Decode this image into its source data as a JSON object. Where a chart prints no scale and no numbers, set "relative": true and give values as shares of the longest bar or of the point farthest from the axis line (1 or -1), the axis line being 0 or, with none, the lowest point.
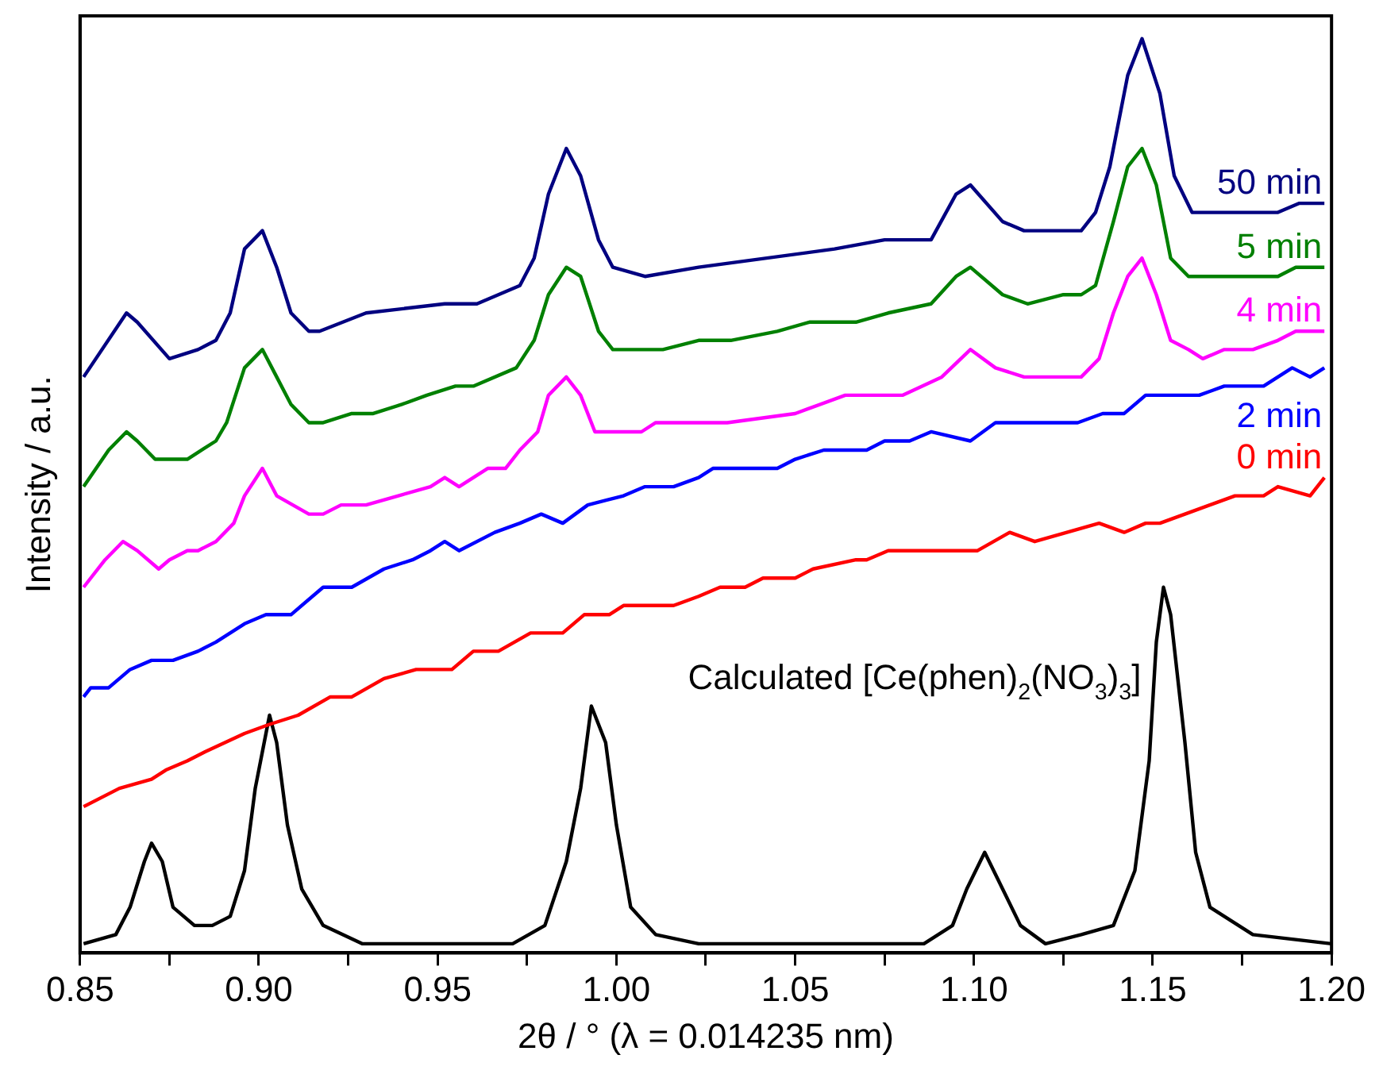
{
  "chart_data": {
    "type": "line",
    "xlabel": "2θ / ° (λ = 0.014235 nm)",
    "ylabel": "Intensity / a.u.",
    "relative": true,
    "marker": "none",
    "line_style": "solid",
    "xlim": [
      0.85,
      1.2
    ],
    "xticks": [
      0.85,
      {
        "value": 0.875,
        "label": null
      },
      {
        "value": 0.9,
        "label": "0.90"
      },
      {
        "value": 0.925,
        "label": null
      },
      0.95,
      {
        "value": 0.975,
        "label": null
      },
      {
        "value": 1.0,
        "label": "1.00"
      },
      {
        "value": 1.025,
        "label": null
      },
      1.05,
      {
        "value": 1.075,
        "label": null
      },
      {
        "value": 1.1,
        "label": "1.10"
      },
      {
        "value": 1.125,
        "label": null
      },
      1.15,
      {
        "value": 1.175,
        "label": null
      },
      {
        "value": 1.2,
        "label": "1.20"
      }
    ],
    "series": [
      {
        "name": "50 min",
        "color": "#000080",
        "x": [
          0.851,
          0.863,
          0.866,
          0.875,
          0.883,
          0.888,
          0.892,
          0.896,
          0.901,
          0.905,
          0.909,
          0.914,
          0.917,
          0.93,
          0.952,
          0.961,
          0.973,
          0.977,
          0.981,
          0.986,
          0.99,
          0.995,
          0.999,
          1.008,
          1.023,
          1.061,
          1.075,
          1.088,
          1.095,
          1.099,
          1.108,
          1.114,
          1.13,
          1.134,
          1.138,
          1.143,
          1.147,
          1.152,
          1.156,
          1.161,
          1.164,
          1.185,
          1.191,
          1.198
        ],
        "values": [
          0.63,
          0.7,
          0.69,
          0.65,
          0.66,
          0.67,
          0.7,
          0.77,
          0.79,
          0.75,
          0.7,
          0.68,
          0.68,
          0.7,
          0.71,
          0.71,
          0.73,
          0.76,
          0.83,
          0.88,
          0.85,
          0.78,
          0.75,
          0.74,
          0.75,
          0.77,
          0.78,
          0.78,
          0.83,
          0.84,
          0.8,
          0.79,
          0.79,
          0.81,
          0.86,
          0.96,
          1.0,
          0.94,
          0.85,
          0.81,
          0.81,
          0.81,
          0.82,
          0.82
        ]
      },
      {
        "name": "5 min",
        "color": "#008000",
        "x": [
          0.851,
          0.858,
          0.863,
          0.866,
          0.871,
          0.875,
          0.88,
          0.888,
          0.891,
          0.896,
          0.901,
          0.905,
          0.909,
          0.914,
          0.918,
          0.926,
          0.932,
          0.94,
          0.947,
          0.955,
          0.96,
          0.972,
          0.977,
          0.981,
          0.986,
          0.99,
          0.995,
          0.999,
          1.003,
          1.013,
          1.023,
          1.032,
          1.045,
          1.054,
          1.061,
          1.067,
          1.076,
          1.088,
          1.095,
          1.099,
          1.108,
          1.115,
          1.125,
          1.13,
          1.134,
          1.139,
          1.143,
          1.147,
          1.151,
          1.155,
          1.16,
          1.164,
          1.173,
          1.185,
          1.19,
          1.198
        ],
        "values": [
          0.51,
          0.55,
          0.57,
          0.56,
          0.54,
          0.54,
          0.54,
          0.56,
          0.58,
          0.64,
          0.66,
          0.63,
          0.6,
          0.58,
          0.58,
          0.59,
          0.59,
          0.6,
          0.61,
          0.62,
          0.62,
          0.64,
          0.67,
          0.72,
          0.75,
          0.74,
          0.68,
          0.66,
          0.66,
          0.66,
          0.67,
          0.67,
          0.68,
          0.69,
          0.69,
          0.69,
          0.7,
          0.71,
          0.74,
          0.75,
          0.72,
          0.71,
          0.72,
          0.72,
          0.73,
          0.8,
          0.86,
          0.88,
          0.84,
          0.76,
          0.74,
          0.74,
          0.74,
          0.74,
          0.75,
          0.75
        ]
      },
      {
        "name": "4 min",
        "color": "#ff00ff",
        "x": [
          0.851,
          0.857,
          0.862,
          0.866,
          0.872,
          0.875,
          0.88,
          0.883,
          0.888,
          0.893,
          0.896,
          0.901,
          0.905,
          0.914,
          0.918,
          0.923,
          0.93,
          0.939,
          0.948,
          0.952,
          0.956,
          0.96,
          0.964,
          0.969,
          0.973,
          0.978,
          0.981,
          0.986,
          0.99,
          0.994,
          0.999,
          1.002,
          1.007,
          1.011,
          1.023,
          1.031,
          1.05,
          1.064,
          1.073,
          1.08,
          1.091,
          1.099,
          1.106,
          1.114,
          1.12,
          1.13,
          1.135,
          1.139,
          1.143,
          1.147,
          1.151,
          1.155,
          1.16,
          1.164,
          1.17,
          1.178,
          1.185,
          1.19,
          1.198
        ],
        "values": [
          0.4,
          0.43,
          0.45,
          0.44,
          0.42,
          0.43,
          0.44,
          0.44,
          0.45,
          0.47,
          0.5,
          0.53,
          0.5,
          0.48,
          0.48,
          0.49,
          0.49,
          0.5,
          0.51,
          0.52,
          0.51,
          0.52,
          0.53,
          0.53,
          0.55,
          0.57,
          0.61,
          0.63,
          0.61,
          0.57,
          0.57,
          0.57,
          0.57,
          0.58,
          0.58,
          0.58,
          0.59,
          0.61,
          0.61,
          0.61,
          0.63,
          0.66,
          0.64,
          0.63,
          0.63,
          0.63,
          0.65,
          0.7,
          0.74,
          0.76,
          0.72,
          0.67,
          0.66,
          0.65,
          0.66,
          0.66,
          0.67,
          0.68,
          0.68
        ]
      },
      {
        "name": "2 min",
        "color": "#0000ff",
        "x": [
          0.851,
          0.853,
          0.858,
          0.864,
          0.87,
          0.876,
          0.883,
          0.888,
          0.896,
          0.902,
          0.909,
          0.918,
          0.926,
          0.935,
          0.943,
          0.948,
          0.952,
          0.956,
          0.966,
          0.973,
          0.979,
          0.985,
          0.992,
          1.002,
          1.008,
          1.016,
          1.023,
          1.027,
          1.045,
          1.05,
          1.058,
          1.07,
          1.075,
          1.082,
          1.088,
          1.099,
          1.106,
          1.114,
          1.129,
          1.136,
          1.142,
          1.148,
          1.163,
          1.17,
          1.181,
          1.185,
          1.189,
          1.194,
          1.198
        ],
        "values": [
          0.28,
          0.29,
          0.29,
          0.31,
          0.32,
          0.32,
          0.33,
          0.34,
          0.36,
          0.37,
          0.37,
          0.4,
          0.4,
          0.42,
          0.43,
          0.44,
          0.45,
          0.44,
          0.46,
          0.47,
          0.48,
          0.47,
          0.49,
          0.5,
          0.51,
          0.51,
          0.52,
          0.53,
          0.53,
          0.54,
          0.55,
          0.55,
          0.56,
          0.56,
          0.57,
          0.56,
          0.58,
          0.58,
          0.58,
          0.59,
          0.59,
          0.61,
          0.61,
          0.62,
          0.62,
          0.63,
          0.64,
          0.63,
          0.64
        ]
      },
      {
        "name": "0 min",
        "color": "#ff0000",
        "x": [
          0.851,
          0.861,
          0.87,
          0.874,
          0.88,
          0.885,
          0.896,
          0.903,
          0.911,
          0.92,
          0.926,
          0.935,
          0.944,
          0.954,
          0.96,
          0.967,
          0.976,
          0.985,
          0.991,
          0.998,
          1.002,
          1.016,
          1.023,
          1.029,
          1.036,
          1.041,
          1.05,
          1.055,
          1.067,
          1.07,
          1.076,
          1.088,
          1.094,
          1.099,
          1.101,
          1.11,
          1.117,
          1.135,
          1.142,
          1.148,
          1.152,
          1.159,
          1.173,
          1.181,
          1.185,
          1.194,
          1.198
        ],
        "values": [
          0.16,
          0.18,
          0.19,
          0.2,
          0.21,
          0.22,
          0.24,
          0.25,
          0.26,
          0.28,
          0.28,
          0.3,
          0.31,
          0.31,
          0.33,
          0.33,
          0.35,
          0.35,
          0.37,
          0.37,
          0.38,
          0.38,
          0.39,
          0.4,
          0.4,
          0.41,
          0.41,
          0.42,
          0.43,
          0.43,
          0.44,
          0.44,
          0.44,
          0.44,
          0.44,
          0.46,
          0.45,
          0.47,
          0.46,
          0.47,
          0.47,
          0.48,
          0.5,
          0.5,
          0.51,
          0.5,
          0.52
        ]
      },
      {
        "name": "Calculated [Ce(phen)$_{2}$(NO$_{3}$)$_{3}$]",
        "color": "#000000",
        "x": [
          0.851,
          0.86,
          0.864,
          0.868,
          0.87,
          0.873,
          0.876,
          0.882,
          0.887,
          0.892,
          0.896,
          0.899,
          0.902,
          0.903,
          0.905,
          0.908,
          0.912,
          0.918,
          0.929,
          0.94,
          0.958,
          0.971,
          0.98,
          0.986,
          0.99,
          0.993,
          0.997,
          1.0,
          1.004,
          1.011,
          1.023,
          1.075,
          1.086,
          1.094,
          1.098,
          1.103,
          1.108,
          1.113,
          1.12,
          1.13,
          1.139,
          1.145,
          1.149,
          1.151,
          1.153,
          1.155,
          1.159,
          1.162,
          1.166,
          1.178,
          1.2
        ],
        "values": [
          0.01,
          0.02,
          0.05,
          0.1,
          0.12,
          0.1,
          0.05,
          0.03,
          0.03,
          0.04,
          0.09,
          0.18,
          0.24,
          0.26,
          0.23,
          0.14,
          0.07,
          0.03,
          0.01,
          0.01,
          0.01,
          0.01,
          0.03,
          0.1,
          0.18,
          0.27,
          0.23,
          0.14,
          0.05,
          0.02,
          0.01,
          0.01,
          0.01,
          0.03,
          0.07,
          0.11,
          0.07,
          0.03,
          0.01,
          0.02,
          0.03,
          0.09,
          0.21,
          0.34,
          0.4,
          0.37,
          0.23,
          0.11,
          0.05,
          0.02,
          0.01
        ]
      }
    ]
  }
}
